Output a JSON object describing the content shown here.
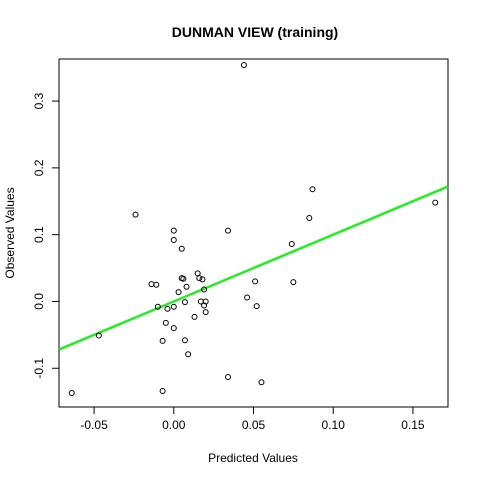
{
  "chart_data": {
    "type": "scatter",
    "title": "DUNMAN VIEW (training)",
    "xlabel": "Predicted Values",
    "ylabel": "Observed Values",
    "xlim": [
      -0.072,
      0.172
    ],
    "ylim": [
      -0.158,
      0.363
    ],
    "x_ticks": [
      -0.05,
      0.0,
      0.05,
      0.1,
      0.15
    ],
    "x_tick_labels": [
      "-0.05",
      "0.00",
      "0.05",
      "0.10",
      "0.15"
    ],
    "y_ticks": [
      -0.1,
      0.0,
      0.1,
      0.2,
      0.3
    ],
    "y_tick_labels": [
      "-0.1",
      "0.0",
      "0.1",
      "0.2",
      "0.3"
    ],
    "grid": false,
    "fit_line": {
      "slope": 1.0,
      "intercept": 0.0,
      "color": "#22ee22"
    },
    "point_color": "#000000",
    "points": [
      [
        -0.064,
        -0.137
      ],
      [
        -0.047,
        -0.051
      ],
      [
        -0.024,
        0.13
      ],
      [
        -0.014,
        0.026
      ],
      [
        -0.011,
        0.025
      ],
      [
        -0.01,
        -0.008
      ],
      [
        -0.007,
        -0.059
      ],
      [
        -0.007,
        -0.134
      ],
      [
        -0.005,
        -0.032
      ],
      [
        -0.004,
        -0.011
      ],
      [
        0.0,
        0.106
      ],
      [
        0.0,
        0.092
      ],
      [
        0.0,
        -0.04
      ],
      [
        0.0,
        -0.008
      ],
      [
        0.003,
        0.014
      ],
      [
        0.005,
        0.079
      ],
      [
        0.005,
        0.035
      ],
      [
        0.006,
        0.034
      ],
      [
        0.007,
        -0.001
      ],
      [
        0.007,
        -0.058
      ],
      [
        0.008,
        0.022
      ],
      [
        0.009,
        -0.079
      ],
      [
        0.013,
        -0.023
      ],
      [
        0.015,
        0.042
      ],
      [
        0.016,
        0.035
      ],
      [
        0.017,
        0.0
      ],
      [
        0.018,
        0.033
      ],
      [
        0.019,
        0.018
      ],
      [
        0.019,
        -0.006
      ],
      [
        0.02,
        -0.016
      ],
      [
        0.02,
        0.0
      ],
      [
        0.034,
        0.106
      ],
      [
        0.034,
        -0.113
      ],
      [
        0.044,
        0.354
      ],
      [
        0.046,
        0.006
      ],
      [
        0.051,
        0.03
      ],
      [
        0.052,
        -0.007
      ],
      [
        0.055,
        -0.121
      ],
      [
        0.074,
        0.086
      ],
      [
        0.075,
        0.029
      ],
      [
        0.085,
        0.125
      ],
      [
        0.087,
        0.168
      ],
      [
        0.164,
        0.148
      ]
    ]
  }
}
